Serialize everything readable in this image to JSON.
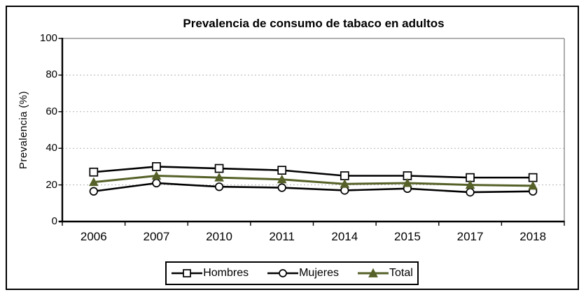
{
  "chart_data": {
    "type": "line",
    "title": "Prevalencia de consumo de tabaco en adultos",
    "ylabel": "Prevalencia (%)",
    "xlabel": "",
    "categories": [
      "2006",
      "2007",
      "2010",
      "2011",
      "2014",
      "2015",
      "2017",
      "2018"
    ],
    "series": [
      {
        "name": "Hombres",
        "marker": "square",
        "line_color": "#000000",
        "marker_fill": "#ffffff",
        "marker_stroke": "#000000",
        "values": [
          27,
          30,
          29,
          28,
          25,
          25,
          24,
          24
        ]
      },
      {
        "name": "Mujeres",
        "marker": "circle",
        "line_color": "#000000",
        "marker_fill": "#ffffff",
        "marker_stroke": "#000000",
        "values": [
          16.5,
          21,
          19,
          18.5,
          17,
          18,
          16,
          16.5
        ]
      },
      {
        "name": "Total",
        "marker": "triangle",
        "line_color": "#556128",
        "marker_fill": "#556128",
        "marker_stroke": "#556128",
        "values": [
          21.5,
          25,
          24,
          23,
          20.5,
          21,
          20,
          19.5
        ]
      }
    ],
    "ylim": [
      0,
      100
    ],
    "yticks": [
      0,
      20,
      40,
      60,
      80,
      100
    ],
    "grid": "horizontal-dotted",
    "gridline_color": "#b3b3b3",
    "plot_border_color": "#808080",
    "axis_color": "#000000",
    "legend_position": "bottom"
  }
}
